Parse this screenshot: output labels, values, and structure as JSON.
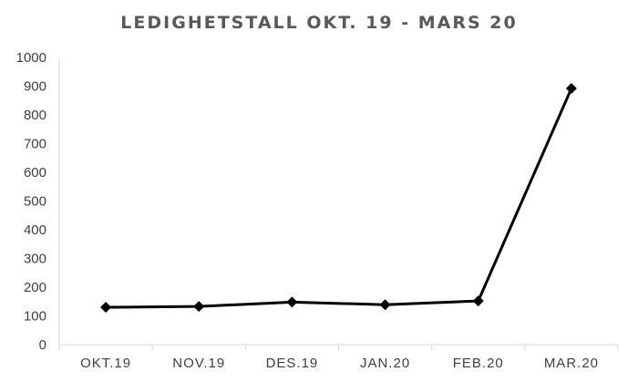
{
  "chart_data": {
    "type": "line",
    "title": "LEDIGHETSTALL OKT. 19 - MARS 20",
    "categories": [
      "OKT.19",
      "NOV.19",
      "DES.19",
      "JAN.20",
      "FEB.20",
      "MAR.20"
    ],
    "series": [
      {
        "values": [
          130,
          133,
          148,
          139,
          152,
          892
        ]
      }
    ],
    "yticks": [
      0,
      100,
      200,
      300,
      400,
      500,
      600,
      700,
      800,
      900,
      1000
    ],
    "ylim": [
      0,
      1000
    ],
    "grid": false,
    "legend": "none",
    "line_color": "#000000",
    "axis_color": "#d9d9d9"
  }
}
